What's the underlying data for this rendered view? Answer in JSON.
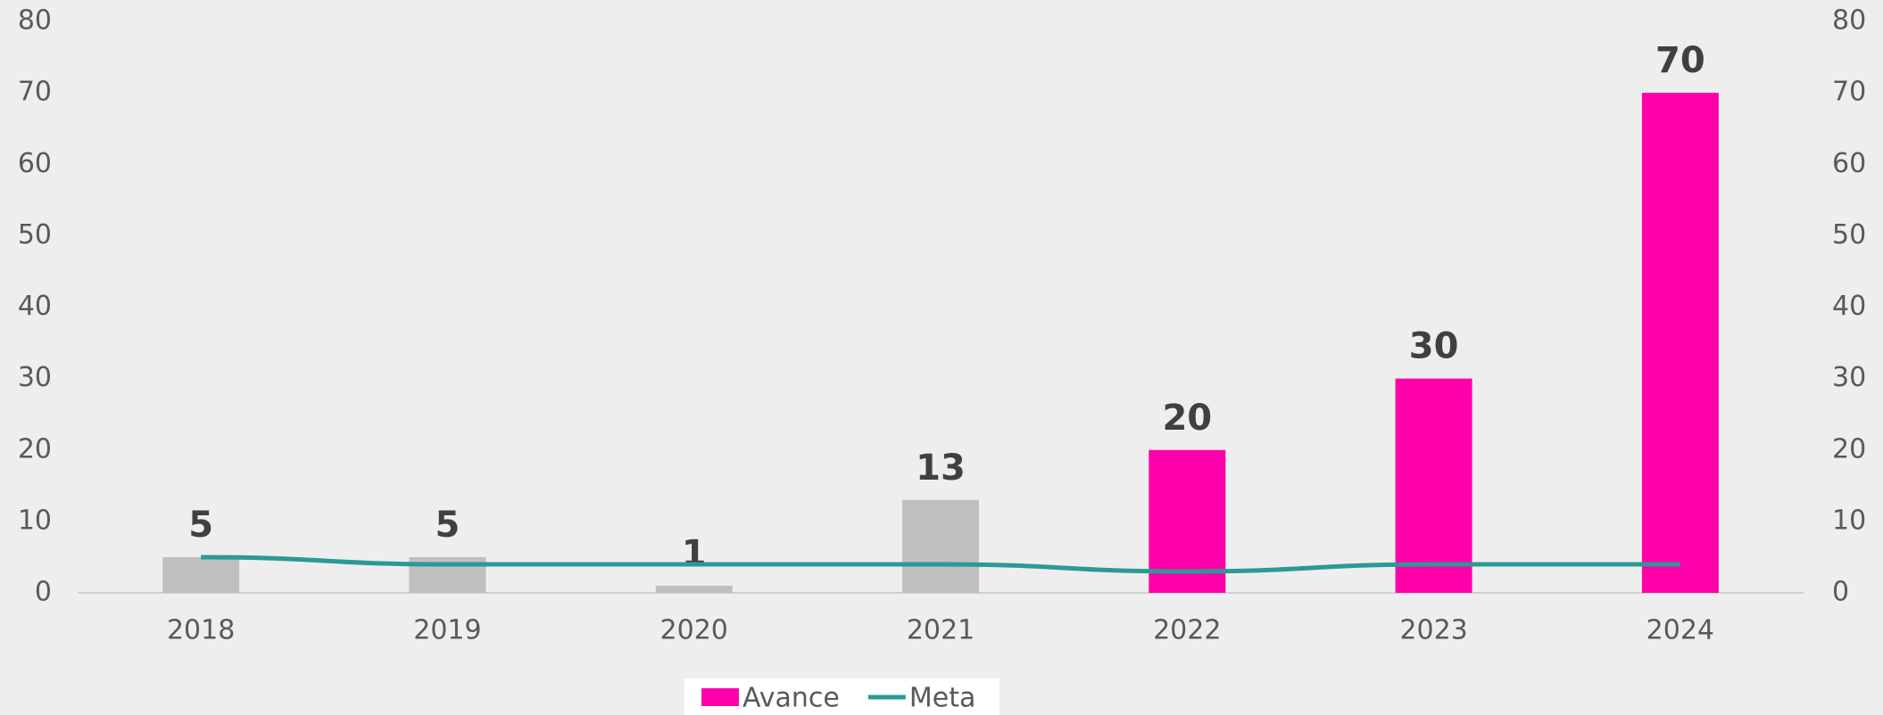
{
  "chart_data": {
    "type": "bar",
    "categories": [
      "2018",
      "2019",
      "2020",
      "2021",
      "2022",
      "2023",
      "2024"
    ],
    "series": [
      {
        "name": "Avance",
        "type": "bar",
        "color": "#ff00aa",
        "colors": [
          "#bfbfbf",
          "#bfbfbf",
          "#bfbfbf",
          "#bfbfbf",
          "#ff00aa",
          "#ff00aa",
          "#ff00aa"
        ],
        "values": [
          5,
          5,
          1,
          13,
          20,
          30,
          70
        ]
      },
      {
        "name": "Meta",
        "type": "line",
        "color": "#2a9a94",
        "axis": "y2",
        "values": [
          5,
          4,
          4,
          4,
          3,
          4,
          4
        ]
      }
    ],
    "ylim": [
      0,
      80
    ],
    "yticks": [
      0,
      10,
      20,
      30,
      40,
      50,
      60,
      70,
      80
    ],
    "y2lim": [
      0,
      80
    ],
    "y2ticks": [
      0,
      10,
      20,
      30,
      40,
      50,
      60,
      70,
      80
    ],
    "legend": "bottom"
  }
}
